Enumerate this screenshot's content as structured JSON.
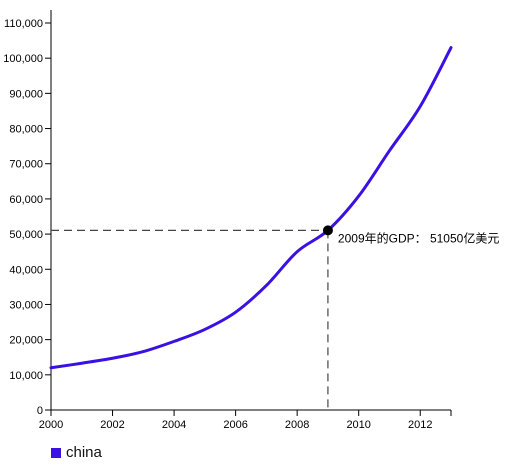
{
  "chart_data": {
    "type": "line",
    "title": "",
    "xlabel": "",
    "ylabel": "",
    "xlim": [
      2000,
      2013
    ],
    "ylim": [
      0,
      115000
    ],
    "x_ticks": [
      "2000",
      "2002",
      "2004",
      "2006",
      "2008",
      "2010",
      "2012"
    ],
    "y_ticks": [
      "0",
      "10,000",
      "20,000",
      "30,000",
      "40,000",
      "50,000",
      "60,000",
      "70,000",
      "80,000",
      "90,000",
      "100,000",
      "110,000"
    ],
    "grid": false,
    "legend_position": "bottom-left",
    "series": [
      {
        "name": "china",
        "color": "#3a10e5",
        "x": [
          2000,
          2001,
          2002,
          2003,
          2004,
          2005,
          2006,
          2007,
          2008,
          2009,
          2010,
          2011,
          2012,
          2013
        ],
        "values": [
          12000,
          13300,
          14700,
          16600,
          19500,
          22900,
          27800,
          35400,
          45000,
          51050,
          60800,
          73700,
          86300,
          103000
        ]
      }
    ],
    "highlight": {
      "x": 2009,
      "y": 51050,
      "label": "2009年的GDP： 51050亿美元"
    }
  }
}
